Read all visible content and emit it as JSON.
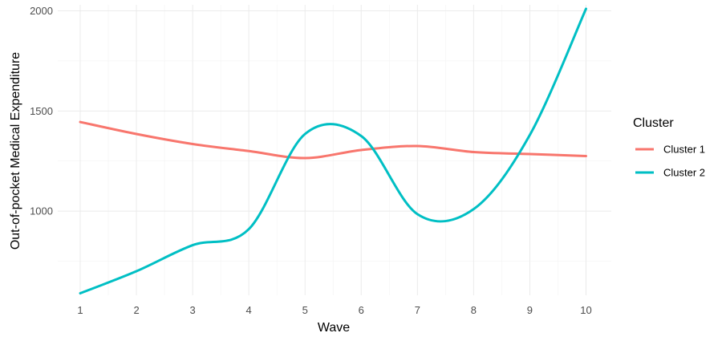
{
  "chart_data": {
    "type": "line",
    "title": "",
    "xlabel": "Wave",
    "ylabel": "Out-of-pocket Medical Expenditure",
    "x": [
      1,
      2,
      3,
      4,
      5,
      6,
      7,
      8,
      9,
      10
    ],
    "xlim": [
      0.6,
      10.45
    ],
    "ylim": [
      580,
      2030
    ],
    "xticks": [
      "1",
      "2",
      "3",
      "4",
      "5",
      "6",
      "7",
      "8",
      "9",
      "10"
    ],
    "yticks": [
      1000,
      1500,
      2000
    ],
    "ytick_labels": [
      "1000",
      "1500",
      "2000"
    ],
    "grid": true,
    "legend": {
      "title": "Cluster",
      "position": "right"
    },
    "series": [
      {
        "name": "Cluster 1",
        "color": "#F8766D",
        "values": [
          1445,
          1385,
          1335,
          1300,
          1265,
          1305,
          1325,
          1295,
          1285,
          1275
        ]
      },
      {
        "name": "Cluster 2",
        "color": "#00BFC4",
        "values": [
          590,
          700,
          830,
          910,
          1385,
          1375,
          985,
          1010,
          1380,
          2010
        ]
      }
    ]
  }
}
